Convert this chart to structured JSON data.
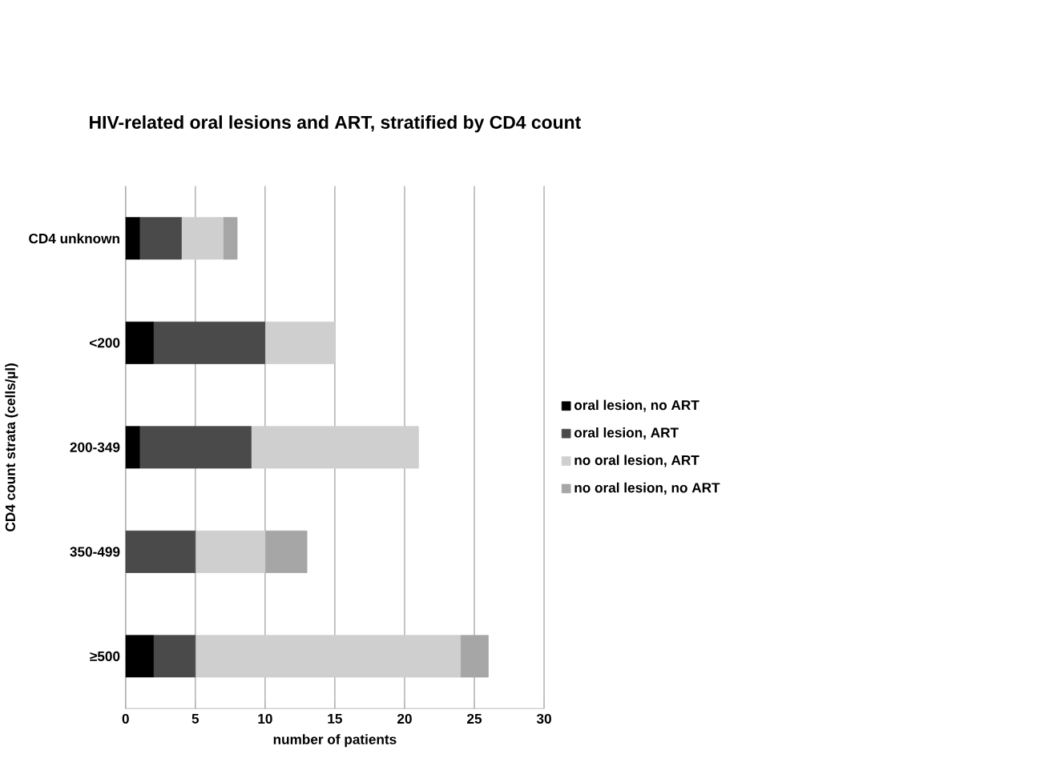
{
  "chart_data": {
    "type": "bar",
    "orientation": "horizontal",
    "stacked": true,
    "title": "HIV-related oral lesions and ART, stratified by CD4 count",
    "xlabel": "number of patients",
    "ylabel": "CD4 count strata (cells/µl)",
    "categories": [
      "CD4 unknown",
      "<200",
      "200-349",
      "350-499",
      "≥500"
    ],
    "series": [
      {
        "name": "oral lesion,  no ART",
        "color": "#000000",
        "values": [
          1,
          2,
          1,
          0,
          2
        ]
      },
      {
        "name": "oral lesion, ART",
        "color": "#4a4a4a",
        "values": [
          3,
          8,
          8,
          5,
          3
        ]
      },
      {
        "name": "no oral lesion, ART",
        "color": "#cfcfcf",
        "values": [
          3,
          5,
          12,
          5,
          19
        ]
      },
      {
        "name": "no oral lesion, no ART",
        "color": "#a6a6a6",
        "values": [
          1,
          0,
          0,
          3,
          2
        ]
      }
    ],
    "xlim": [
      0,
      30
    ],
    "xticks": [
      0,
      5,
      10,
      15,
      20,
      25,
      30
    ],
    "grid": "x",
    "legend": "right"
  }
}
